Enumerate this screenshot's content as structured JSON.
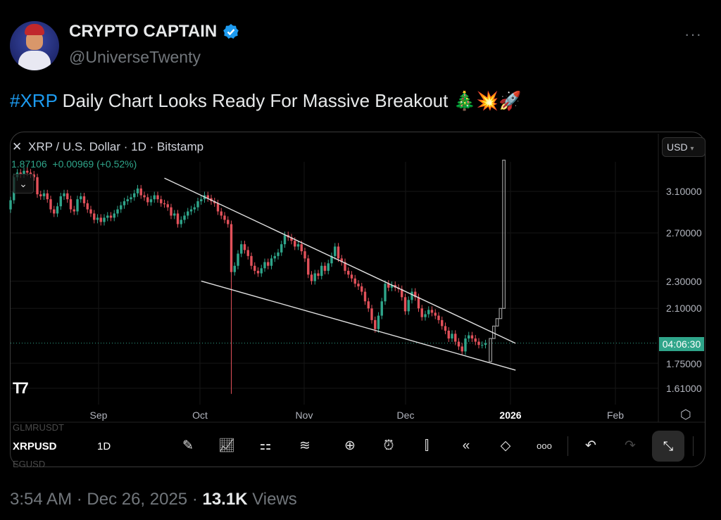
{
  "author": {
    "name": "CRYPTO CAPTAIN",
    "handle": "@UniverseTwenty",
    "verified": true,
    "more_icon": "ellipsis-icon"
  },
  "tweet": {
    "hashtag": "#XRP",
    "text": " Daily Chart Looks Ready For Massive Breakout ",
    "emojis": "🎄💥🚀"
  },
  "chart": {
    "title": "XRP / U.S. Dollar · 1D · Bitstamp",
    "last": "1.87106",
    "change": "+0.00969",
    "change_pct": "(+0.52%)",
    "currency": "USD",
    "countdown": "04:06:30",
    "logo": "TV",
    "colors": {
      "up": "#2fa58a",
      "down": "#e2515a",
      "projection": "#9a9a9a",
      "trendline": "#e0e0e0",
      "countdown_bg": "#2fa58a"
    }
  },
  "chart_data": {
    "type": "candlestick",
    "scale": "log",
    "ylim": [
      1.55,
      3.5
    ],
    "y_ticks": [
      "3.10000",
      "2.70000",
      "2.30000",
      "2.10000",
      "1.75000",
      "1.61000"
    ],
    "x_ticks": [
      "Sep",
      "Oct",
      "Nov",
      "Dec",
      "2026",
      "Feb"
    ],
    "closes": [
      3.01,
      3.25,
      3.3,
      3.28,
      3.32,
      3.3,
      3.28,
      3.25,
      3.07,
      3.05,
      3.08,
      3.02,
      2.92,
      2.88,
      2.95,
      3.05,
      3.08,
      3.02,
      2.92,
      2.9,
      3.02,
      3.05,
      2.98,
      2.92,
      2.88,
      2.82,
      2.84,
      2.8,
      2.84,
      2.86,
      2.84,
      2.88,
      2.92,
      2.96,
      3.0,
      3.02,
      3.04,
      3.08,
      3.13,
      3.06,
      3.04,
      2.99,
      3.02,
      3.06,
      3.02,
      2.98,
      2.97,
      2.94,
      2.86,
      2.88,
      2.78,
      2.82,
      2.86,
      2.9,
      2.92,
      2.94,
      3.0,
      3.02,
      3.06,
      3.03,
      3.0,
      2.98,
      2.9,
      2.86,
      2.82,
      2.78,
      2.37,
      2.42,
      2.52,
      2.6,
      2.55,
      2.5,
      2.42,
      2.38,
      2.36,
      2.4,
      2.45,
      2.42,
      2.48,
      2.5,
      2.53,
      2.6,
      2.68,
      2.66,
      2.63,
      2.58,
      2.6,
      2.54,
      2.48,
      2.35,
      2.3,
      2.36,
      2.34,
      2.42,
      2.38,
      2.44,
      2.5,
      2.58,
      2.48,
      2.45,
      2.38,
      2.35,
      2.32,
      2.28,
      2.26,
      2.22,
      2.15,
      2.1,
      2.02,
      1.96,
      2.05,
      2.15,
      2.28,
      2.25,
      2.27,
      2.25,
      2.24,
      2.18,
      2.08,
      2.16,
      2.22,
      2.18,
      2.1,
      2.04,
      2.06,
      2.09,
      2.07,
      2.05,
      2.02,
      1.98,
      1.95,
      1.9,
      1.93,
      1.88,
      1.85,
      1.82,
      1.9,
      1.92,
      1.9,
      1.88,
      1.86,
      1.86,
      1.87
    ],
    "crash_low": 1.58,
    "projection": [
      [
        1.76,
        1.9
      ],
      [
        1.9,
        1.98
      ],
      [
        1.98,
        2.03
      ],
      [
        2.03,
        2.1
      ],
      [
        2.1,
        3.44
      ]
    ],
    "current_price": 1.87106,
    "trendlines": [
      {
        "from": [
          "2025-09-21",
          3.24
        ],
        "to": [
          "2026-01-04",
          1.87
        ]
      },
      {
        "from": [
          "2025-10-02",
          2.3
        ],
        "to": [
          "2026-01-04",
          1.71
        ]
      }
    ]
  },
  "toolbar": {
    "ticker": "XRPUSD",
    "interval": "1D",
    "ghost_above": "GLMRUSDT",
    "ghost_below": "EGUSD",
    "icons": [
      "pencil-icon",
      "indicators-icon",
      "layout-grid-icon",
      "patterns-icon",
      "add-icon",
      "alarm-icon",
      "candles-icon",
      "replay-icon",
      "layers-icon",
      "more-icon"
    ],
    "undo_icon": "undo-icon",
    "redo_icon": "redo-icon",
    "fullscreen_icon": "exit-fullscreen-icon"
  },
  "footer": {
    "time": "3:54 AM · Dec 26, 2025 · ",
    "views_count": "13.1K",
    "views_label": " Views"
  }
}
